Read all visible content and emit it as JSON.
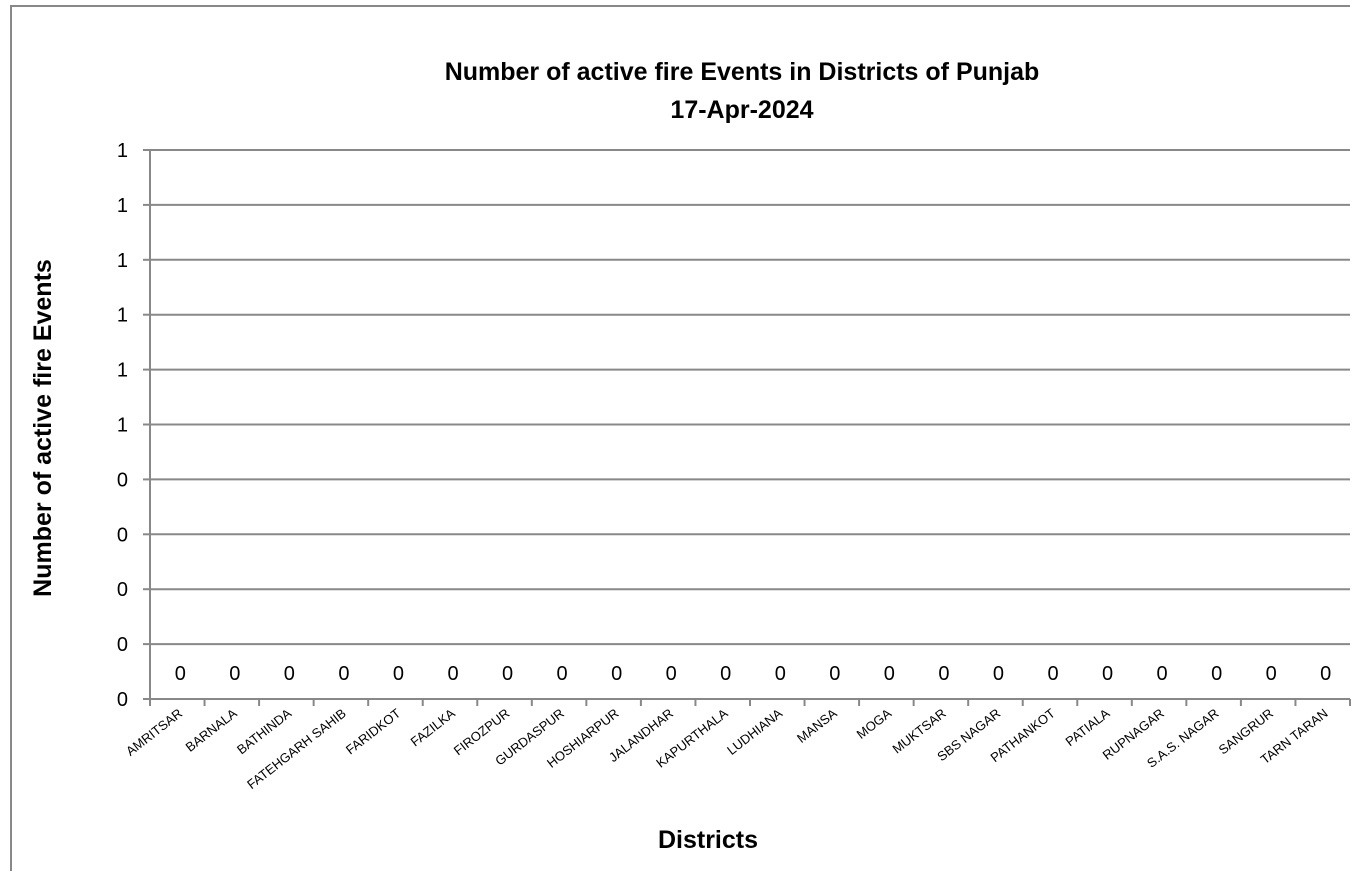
{
  "chart_data": {
    "type": "bar",
    "title": "Number of  active fire Events in Districts of Punjab",
    "subtitle": "17-Apr-2024",
    "xlabel": "Districts",
    "ylabel": "Number of active fire Events",
    "categories": [
      "AMRITSAR",
      "BARNALA",
      "BATHINDA",
      "FATEHGARH SAHIB",
      "FARIDKOT",
      "FAZILKA",
      "FIROZPUR",
      "GURDASPUR",
      "HOSHIARPUR",
      "JALANDHAR",
      "KAPURTHALA",
      "LUDHIANA",
      "MANSA",
      "MOGA",
      "MUKTSAR",
      "SBS NAGAR",
      "PATHANKOT",
      "PATIALA",
      "RUPNAGAR",
      "S.A.S. NAGAR",
      "SANGRUR",
      "TARN TARAN"
    ],
    "values": [
      0,
      0,
      0,
      0,
      0,
      0,
      0,
      0,
      0,
      0,
      0,
      0,
      0,
      0,
      0,
      0,
      0,
      0,
      0,
      0,
      0,
      0
    ],
    "data_labels": [
      "0",
      "0",
      "0",
      "0",
      "0",
      "0",
      "0",
      "0",
      "0",
      "0",
      "0",
      "0",
      "0",
      "0",
      "0",
      "0",
      "0",
      "0",
      "0",
      "0",
      "0",
      "0"
    ],
    "ylim": [
      0,
      1
    ],
    "yticks": [
      "0",
      "0",
      "0",
      "0",
      "0",
      "1",
      "1",
      "1",
      "1",
      "1",
      "1"
    ],
    "grid": true,
    "gridline_color": "#888888"
  }
}
